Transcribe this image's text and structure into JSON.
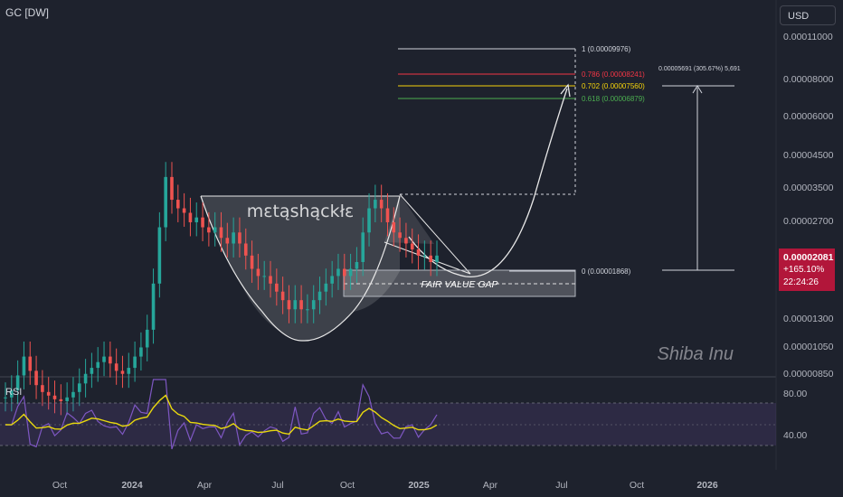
{
  "header": {
    "symbol": "GC [DW]",
    "currency_button": "USD"
  },
  "watermark": {
    "author": "mɛtąshąckłɛ",
    "asset_name": "Shiba Inu"
  },
  "price_tag": {
    "price": "0.00002081",
    "change": "+165.10%",
    "countdown": "22:24:26",
    "color": "#b2163a"
  },
  "rsi": {
    "label": "RSI",
    "upper_label": "80.00",
    "lower_label": "40.00",
    "line_color": "#7e57c2",
    "ma_color": "#e8d80e"
  },
  "chart_data": {
    "type": "candlestick",
    "scale": "log",
    "y_ticks": [
      "0.00011000",
      "0.00008000",
      "0.00006000",
      "0.00004500",
      "0.00003500",
      "0.00002700",
      "0.00001300",
      "0.00001050",
      "0.00000850"
    ],
    "x_ticks": [
      "Oct",
      "2024",
      "Apr",
      "Jul",
      "Oct",
      "2025",
      "Apr",
      "Jul",
      "Oct",
      "2026"
    ],
    "fib_levels": [
      {
        "label": "1 (0.00009976)",
        "value": 9.976e-05,
        "color": "#d1d4dc"
      },
      {
        "label": "0.786 (0.00008241)",
        "value": 8.241e-05,
        "color": "#f23645"
      },
      {
        "label": "0.702 (0.00007560)",
        "value": 7.56e-05,
        "color": "#f5d30a"
      },
      {
        "label": "0.618 (0.00006879)",
        "value": 6.879e-05,
        "color": "#4caf50"
      },
      {
        "label": "0 (0.00001868)",
        "value": 1.868e-05,
        "color": "#d1d4dc"
      }
    ],
    "measure_label": "0.00005691 (305.67%) 5,691",
    "annotations": [
      "FAIR VALUE GAP"
    ],
    "price_series": [
      7.2e-06,
      7.6e-06,
      8.5e-06,
      9.8e-06,
      8.8e-06,
      7.9e-06,
      7.5e-06,
      7.3e-06,
      7.1e-06,
      7e-06,
      7.2e-06,
      7.5e-06,
      8e-06,
      8.6e-06,
      9e-06,
      9.4e-06,
      9.8e-06,
      9.3e-06,
      8.8e-06,
      8.6e-06,
      9e-06,
      9.8e-06,
      1.05e-05,
      1.2e-05,
      1.7e-05,
      2.6e-05,
      3.8e-05,
      3.2e-05,
      3e-05,
      2.9e-05,
      2.7e-05,
      2.8e-05,
      2.6e-05,
      2.5e-05,
      2.6e-05,
      2.4e-05,
      2.3e-05,
      2.5e-05,
      2.3e-05,
      2.1e-05,
      1.9e-05,
      1.8e-05,
      1.8e-05,
      1.7e-05,
      1.6e-05,
      1.5e-05,
      1.4e-05,
      1.5e-05,
      1.4e-05,
      1.4e-05,
      1.5e-05,
      1.6e-05,
      1.7e-05,
      1.8e-05,
      1.9e-05,
      1.8e-05,
      1.9e-05,
      2e-05,
      2.5e-05,
      3e-05,
      3.2e-05,
      3e-05,
      2.7e-05,
      2.5e-05,
      2.4e-05,
      2.3e-05,
      2.2e-05,
      2.1e-05,
      2.1e-05,
      2e-05,
      2.1e-05
    ]
  }
}
